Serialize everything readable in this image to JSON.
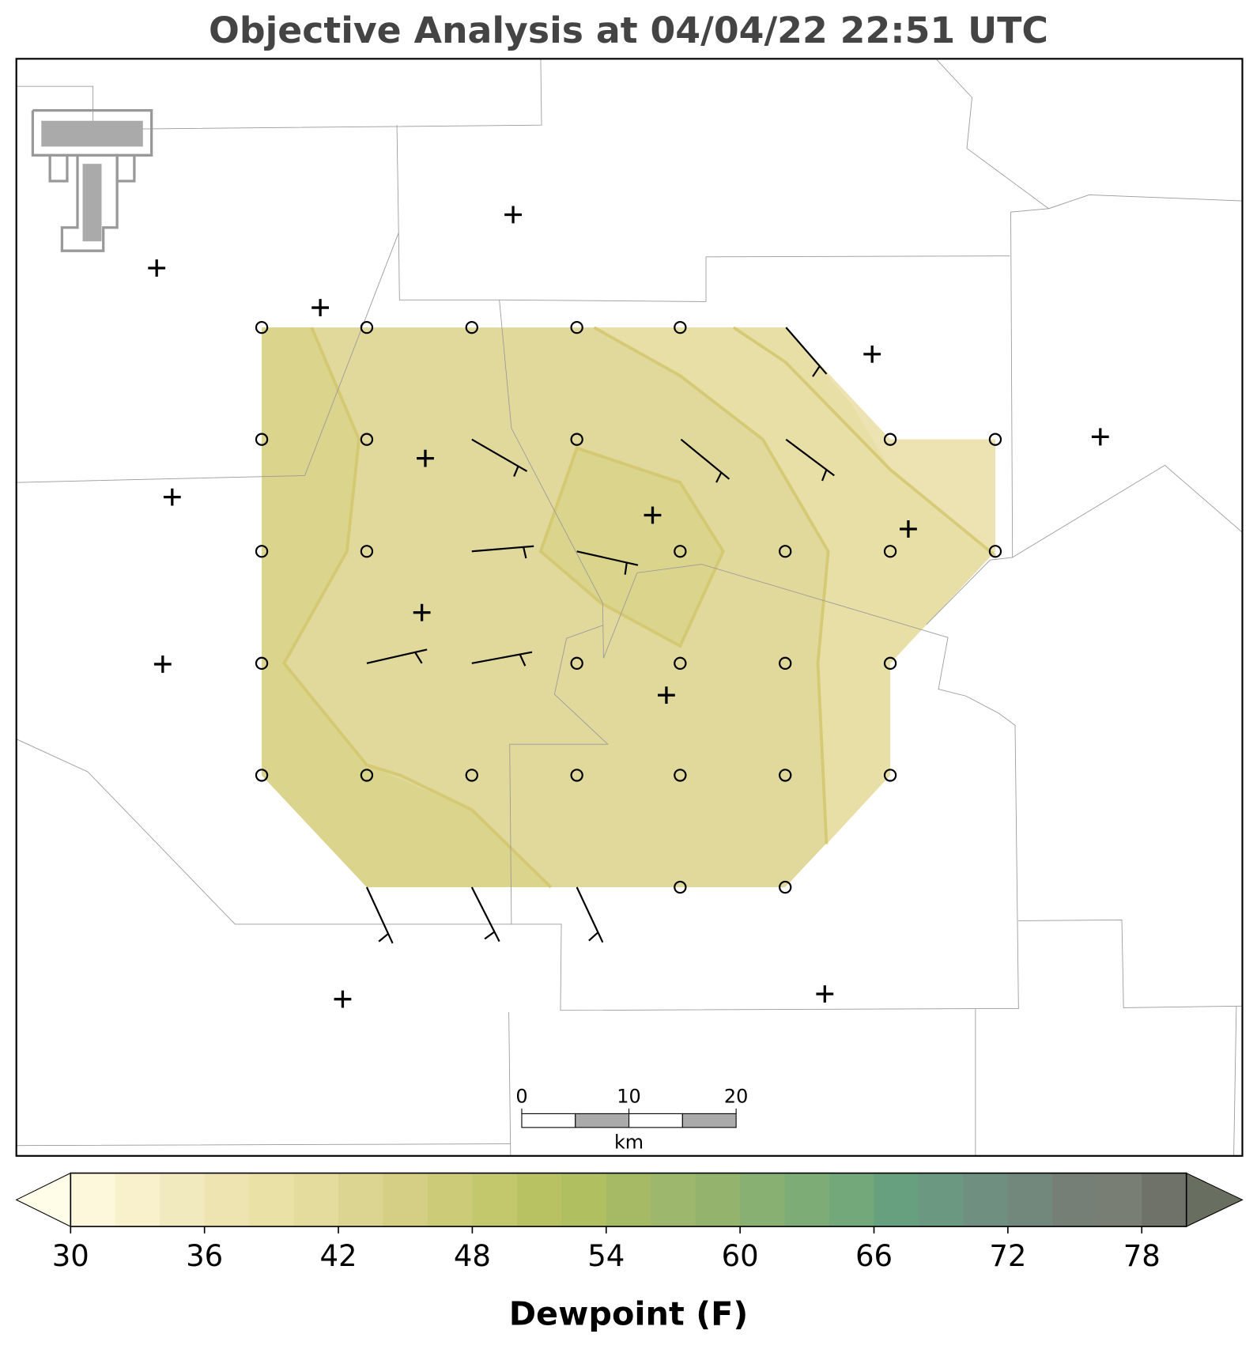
{
  "title": "Objective Analysis at 04/04/22 22:51 UTC",
  "colorbar": {
    "label": "Dewpoint (F)",
    "clim": [
      30,
      80
    ],
    "ticks": [
      30,
      36,
      42,
      48,
      54,
      60,
      66,
      72,
      78
    ],
    "colors": [
      "#fdf8dc",
      "#f8f1cc",
      "#f2eabf",
      "#eee4b2",
      "#e9e1a6",
      "#e4dc9c",
      "#dcd592",
      "#d4cf84",
      "#cccc78",
      "#c4c86c",
      "#b9c262",
      "#b0bf60",
      "#a6ba66",
      "#9db86c",
      "#94b46e",
      "#88b072",
      "#7eac76",
      "#72a87a",
      "#66a07e",
      "#6a9880",
      "#6f9080",
      "#73887c",
      "#767f76",
      "#787e74",
      "#6e7268"
    ],
    "under_color": "#fffde8",
    "over_color": "#686e60"
  },
  "scalebar": {
    "xlim": [
      0,
      20
    ],
    "ticks": [
      0,
      10,
      20
    ],
    "unit": "km"
  }
}
